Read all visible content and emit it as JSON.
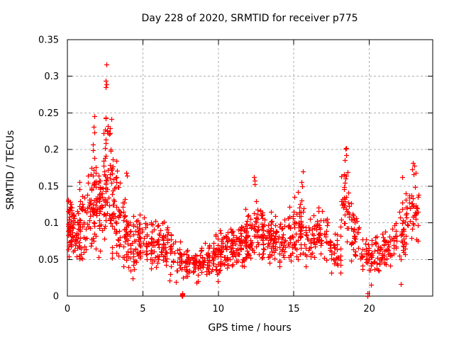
{
  "chart_data": {
    "type": "scatter",
    "title": "Day 228 of 2020, SRMTID for receiver p775",
    "xlabel": "GPS time / hours",
    "ylabel": "SRMTID / TECUs",
    "xlim": [
      0,
      24.2
    ],
    "ylim": [
      0,
      0.35
    ],
    "x_ticks": [
      {
        "v": 0,
        "label": "0"
      },
      {
        "v": 5,
        "label": "5"
      },
      {
        "v": 10,
        "label": "10"
      },
      {
        "v": 15,
        "label": "15"
      },
      {
        "v": 20,
        "label": "20"
      }
    ],
    "y_ticks": [
      {
        "v": 0,
        "label": "0"
      },
      {
        "v": 0.05,
        "label": "0.05"
      },
      {
        "v": 0.1,
        "label": "0.1"
      },
      {
        "v": 0.15,
        "label": "0.15"
      },
      {
        "v": 0.2,
        "label": "0.2"
      },
      {
        "v": 0.25,
        "label": "0.25"
      },
      {
        "v": 0.3,
        "label": "0.3"
      },
      {
        "v": 0.35,
        "label": "0.35"
      }
    ],
    "grid": true,
    "legend": "none",
    "marker": {
      "shape": "plus",
      "color": "#ff0000",
      "size": 7
    },
    "axis_color": "#000000",
    "grid_color": "#adadad",
    "series": [
      {
        "name": "SRMTID",
        "seed": 20200813,
        "profile_columns": [
          "x0",
          "x1",
          "count",
          "y_mode",
          "y_spread",
          "y_min",
          "y_max"
        ],
        "density_profile": [
          [
            0.0,
            0.3,
            45,
            0.095,
            0.05,
            0.045,
            0.15
          ],
          [
            0.3,
            0.8,
            40,
            0.09,
            0.05,
            0.05,
            0.16
          ],
          [
            0.8,
            1.3,
            40,
            0.1,
            0.06,
            0.05,
            0.18
          ],
          [
            1.3,
            1.8,
            45,
            0.12,
            0.07,
            0.05,
            0.21
          ],
          [
            1.8,
            2.3,
            50,
            0.13,
            0.08,
            0.032,
            0.25
          ],
          [
            2.3,
            2.9,
            55,
            0.16,
            0.09,
            0.04,
            0.3
          ],
          [
            2.9,
            3.4,
            45,
            0.12,
            0.08,
            0.04,
            0.24
          ],
          [
            3.4,
            4.0,
            40,
            0.09,
            0.06,
            0.03,
            0.17
          ],
          [
            4.0,
            4.6,
            35,
            0.07,
            0.05,
            0.022,
            0.13
          ],
          [
            4.6,
            5.2,
            38,
            0.075,
            0.04,
            0.035,
            0.12
          ],
          [
            5.2,
            5.8,
            38,
            0.07,
            0.04,
            0.035,
            0.12
          ],
          [
            5.8,
            6.4,
            36,
            0.075,
            0.045,
            0.04,
            0.13
          ],
          [
            6.4,
            7.0,
            32,
            0.065,
            0.04,
            0.02,
            0.11
          ],
          [
            7.0,
            7.6,
            22,
            0.05,
            0.03,
            0.02,
            0.09
          ],
          [
            7.6,
            8.2,
            26,
            0.045,
            0.025,
            0.022,
            0.08
          ],
          [
            8.2,
            8.8,
            34,
            0.045,
            0.02,
            0.02,
            0.075
          ],
          [
            8.8,
            9.4,
            36,
            0.05,
            0.025,
            0.03,
            0.085
          ],
          [
            9.4,
            10.0,
            38,
            0.055,
            0.03,
            0.02,
            0.095
          ],
          [
            10.0,
            10.6,
            40,
            0.06,
            0.035,
            0.035,
            0.11
          ],
          [
            10.6,
            11.2,
            40,
            0.065,
            0.035,
            0.04,
            0.115
          ],
          [
            11.2,
            11.8,
            42,
            0.075,
            0.04,
            0.04,
            0.13
          ],
          [
            11.8,
            12.4,
            44,
            0.085,
            0.045,
            0.045,
            0.15
          ],
          [
            12.4,
            12.9,
            40,
            0.09,
            0.05,
            0.05,
            0.163
          ],
          [
            12.9,
            13.5,
            40,
            0.08,
            0.04,
            0.045,
            0.13
          ],
          [
            13.5,
            14.2,
            42,
            0.075,
            0.04,
            0.04,
            0.125
          ],
          [
            14.2,
            15.0,
            44,
            0.08,
            0.045,
            0.045,
            0.14
          ],
          [
            15.0,
            15.8,
            46,
            0.095,
            0.055,
            0.05,
            0.17
          ],
          [
            15.8,
            16.5,
            40,
            0.075,
            0.04,
            0.04,
            0.125
          ],
          [
            16.5,
            17.3,
            40,
            0.08,
            0.045,
            0.035,
            0.13
          ],
          [
            17.3,
            18.1,
            36,
            0.06,
            0.035,
            0.03,
            0.1
          ],
          [
            18.1,
            18.8,
            40,
            0.12,
            0.06,
            0.05,
            0.2
          ],
          [
            18.8,
            19.4,
            34,
            0.08,
            0.045,
            0.04,
            0.135
          ],
          [
            19.4,
            20.1,
            32,
            0.055,
            0.03,
            0.03,
            0.09
          ],
          [
            20.1,
            20.8,
            34,
            0.055,
            0.03,
            0.032,
            0.095
          ],
          [
            20.8,
            21.6,
            38,
            0.065,
            0.035,
            0.04,
            0.11
          ],
          [
            21.6,
            22.4,
            40,
            0.085,
            0.05,
            0.05,
            0.15
          ],
          [
            22.4,
            23.25,
            44,
            0.11,
            0.06,
            0.06,
            0.185
          ]
        ],
        "notable_points": [
          [
            2.57,
            0.316
          ],
          [
            2.55,
            0.294
          ],
          [
            2.57,
            0.289
          ],
          [
            2.56,
            0.285
          ],
          [
            1.78,
            0.246
          ],
          [
            2.53,
            0.244
          ],
          [
            2.9,
            0.242
          ],
          [
            1.76,
            0.231
          ],
          [
            1.77,
            0.223
          ],
          [
            2.5,
            0.227
          ],
          [
            2.62,
            0.225
          ],
          [
            2.75,
            0.221
          ],
          [
            1.68,
            0.207
          ],
          [
            1.7,
            0.199
          ],
          [
            2.49,
            0.202
          ],
          [
            2.88,
            0.2
          ],
          [
            3.9,
            0.168
          ],
          [
            3.95,
            0.164
          ],
          [
            3.5,
            0.155
          ],
          [
            12.38,
            0.162
          ],
          [
            12.42,
            0.158
          ],
          [
            12.4,
            0.153
          ],
          [
            15.62,
            0.17
          ],
          [
            15.5,
            0.156
          ],
          [
            15.55,
            0.15
          ],
          [
            18.4,
            0.201
          ],
          [
            18.45,
            0.192
          ],
          [
            18.35,
            0.186
          ],
          [
            18.46,
            0.202
          ],
          [
            22.9,
            0.182
          ],
          [
            23.0,
            0.178
          ],
          [
            22.85,
            0.173
          ],
          [
            23.05,
            0.168
          ],
          [
            22.2,
            0.162
          ],
          [
            22.95,
            0.166
          ],
          [
            6.75,
            0.021
          ],
          [
            7.2,
            0.019
          ],
          [
            8.55,
            0.018
          ],
          [
            8.65,
            0.02
          ],
          [
            9.95,
            0.02
          ],
          [
            20.1,
            0.015
          ],
          [
            22.1,
            0.016
          ],
          [
            4.33,
            0.024
          ]
        ],
        "near_zero_points": [
          [
            7.57,
            0.001
          ],
          [
            7.6,
            0.0
          ],
          [
            7.6,
            0.004
          ],
          [
            7.63,
            0.002
          ],
          [
            7.62,
            0.003
          ],
          [
            19.9,
            0.0
          ],
          [
            19.9,
            0.004
          ]
        ]
      }
    ]
  }
}
